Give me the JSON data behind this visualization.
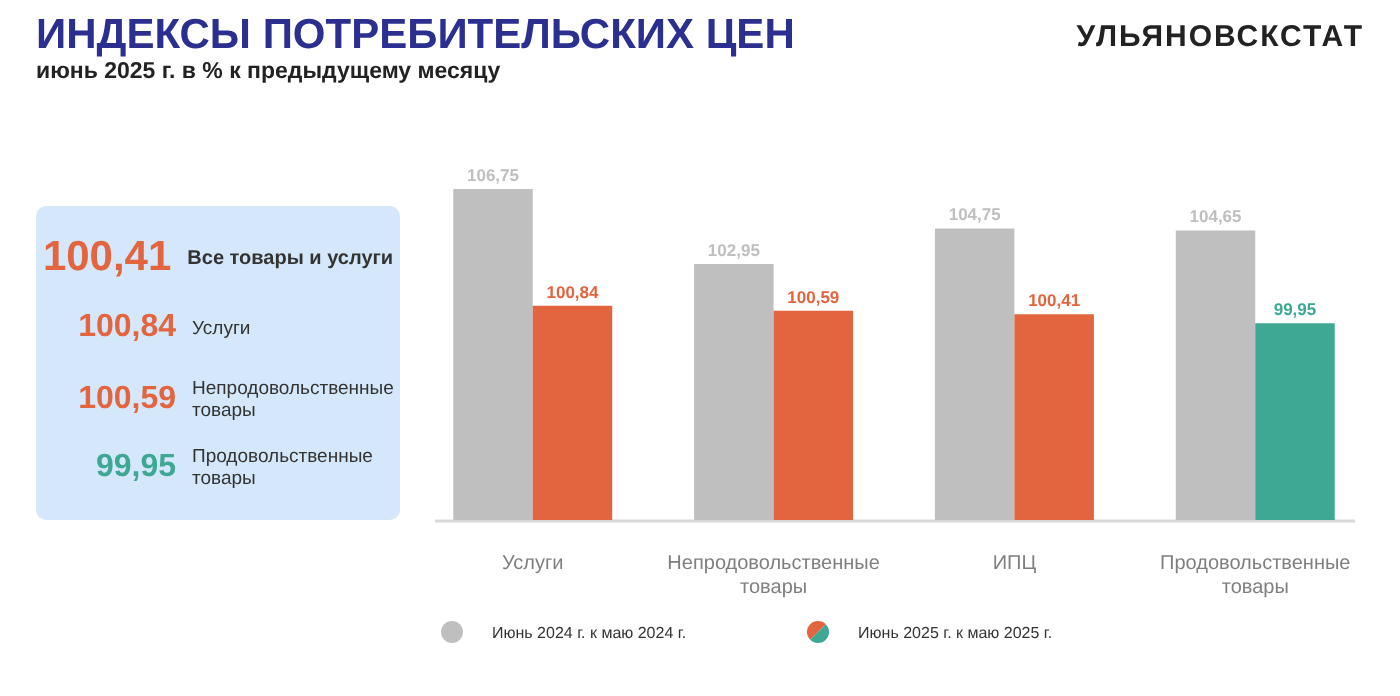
{
  "chart_data": [
    {
      "type": "other",
      "annotations": [
        "100,41",
        "Все товары и услуги",
        "100,84",
        "Услуги",
        "100,59",
        "Непродовольственные товары",
        "99,95",
        "Продовольственные товары"
      ],
      "colors": [
        "#e2653f",
        "#e2653f",
        "#e2653f",
        "#3fa895"
      ]
    },
    {
      "type": "bar",
      "title": "ИНДЕКСЫ ПОТРЕБИТЕЛЬСКИХ ЦЕН",
      "subtitle": "июнь 2025 г. в % к предыдущему месяцу",
      "annotations": [
        "УЛЬЯНОВСКСТАТ"
      ],
      "categories": [
        "Услуги",
        "Непродовольственные товары",
        "ИПЦ",
        "Продовольственные товары"
      ],
      "series": [
        {
          "name": "Июнь 2024 г. к маю 2024 г.",
          "color": "#bfbfbf",
          "values": [
            106.75,
            102.95,
            104.75,
            104.65
          ],
          "value_labels": [
            "106,75",
            "102,95",
            "104,75",
            "104,65"
          ]
        },
        {
          "name": "Июнь 2025 г. к маю 2025 г.",
          "colors": [
            "#e2653f",
            "#e2653f",
            "#e2653f",
            "#3fa895"
          ],
          "values": [
            100.84,
            100.59,
            100.41,
            99.95
          ],
          "value_labels": [
            "100,84",
            "100,59",
            "100,41",
            "99,95"
          ]
        }
      ],
      "ylim": [
        90,
        107
      ],
      "legend": "bottom"
    }
  ]
}
